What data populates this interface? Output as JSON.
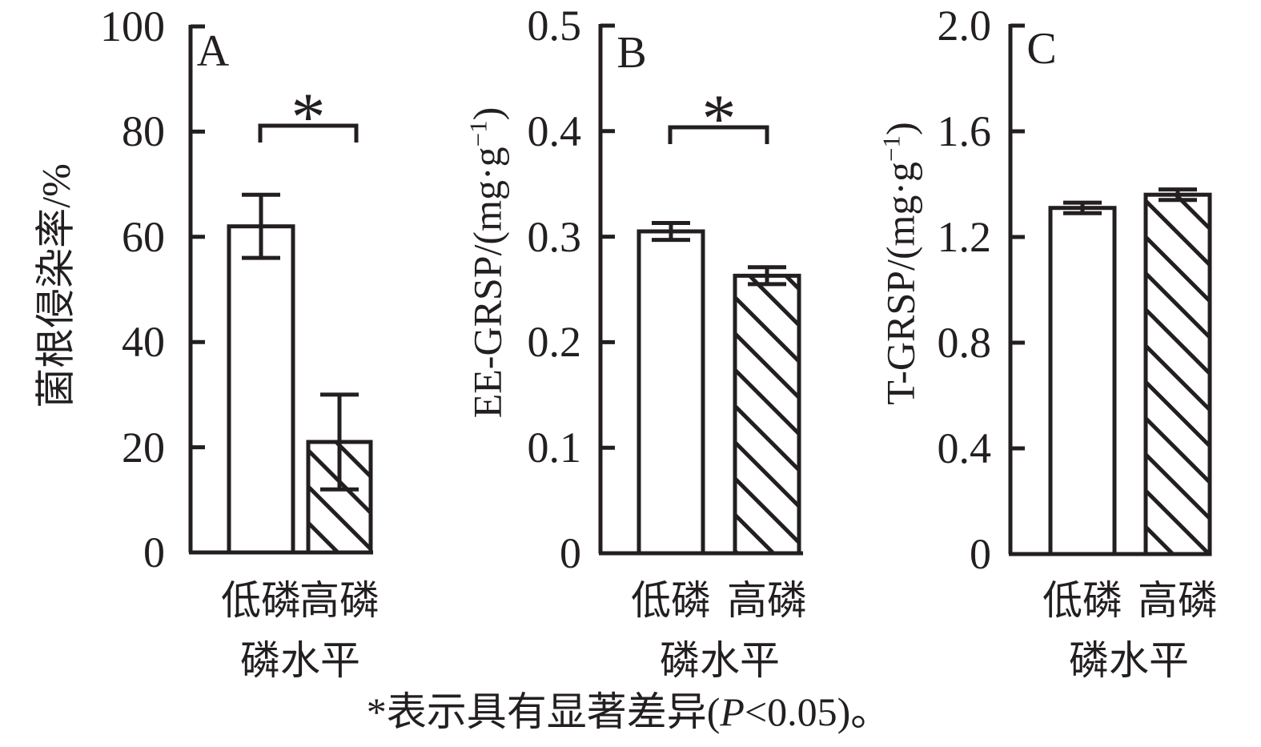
{
  "colors": {
    "ink": "#231f20",
    "background": "#ffffff"
  },
  "caption": {
    "pre": "*表示具有显著差异(",
    "italic": "P",
    "post": "<0.05)。"
  },
  "chart_data": [
    {
      "type": "bar",
      "panel_label": "A",
      "ylabel": {
        "pre": "菌根侵染率/%",
        "sup": "",
        "post": ""
      },
      "xlabel": "磷水平",
      "categories": [
        "低磷",
        "高磷"
      ],
      "values": [
        62,
        21
      ],
      "errors": [
        6,
        9
      ],
      "ylim": [
        0,
        100
      ],
      "yticks": [
        100,
        80,
        60,
        40,
        20,
        0
      ],
      "ytick_labels": [
        "100",
        "80",
        "60",
        "40",
        "20",
        "0"
      ],
      "bar_styles": [
        "plain",
        "hatched"
      ],
      "significance": "*",
      "grid": false,
      "legend": "none"
    },
    {
      "type": "bar",
      "panel_label": "B",
      "ylabel": {
        "pre": "EE-GRSP/(mg·g",
        "sup": "−1",
        "post": ")"
      },
      "xlabel": "磷水平",
      "categories": [
        "低磷",
        "高磷"
      ],
      "values": [
        0.305,
        0.263
      ],
      "errors": [
        0.008,
        0.008
      ],
      "ylim": [
        0,
        0.5
      ],
      "yticks": [
        0.5,
        0.4,
        0.3,
        0.2,
        0.1,
        0
      ],
      "ytick_labels": [
        "0.5",
        "0.4",
        "0.3",
        "0.2",
        "0.1",
        "0"
      ],
      "bar_styles": [
        "plain",
        "hatched"
      ],
      "significance": "*",
      "grid": false,
      "legend": "none"
    },
    {
      "type": "bar",
      "panel_label": "C",
      "ylabel": {
        "pre": "T-GRSP/(mg·g",
        "sup": "−1",
        "post": ")"
      },
      "xlabel": "磷水平",
      "categories": [
        "低磷",
        "高磷"
      ],
      "values": [
        1.31,
        1.36
      ],
      "errors": [
        0.02,
        0.02
      ],
      "ylim": [
        0,
        2.0
      ],
      "yticks": [
        2.0,
        1.6,
        1.2,
        0.8,
        0.4,
        0
      ],
      "ytick_labels": [
        "2.0",
        "1.6",
        "1.2",
        "0.8",
        "0.4",
        "0"
      ],
      "bar_styles": [
        "plain",
        "hatched"
      ],
      "significance": null,
      "grid": false,
      "legend": "none"
    }
  ]
}
